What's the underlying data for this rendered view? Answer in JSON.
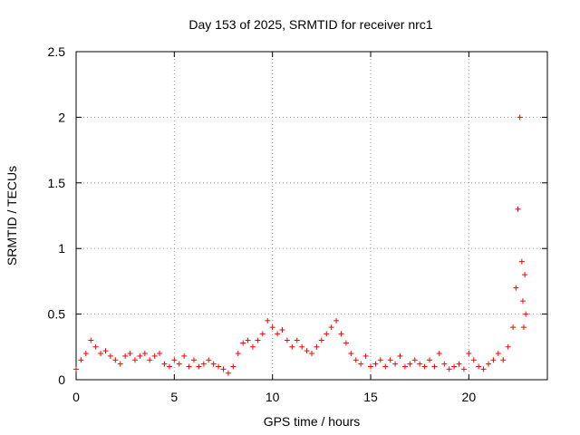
{
  "chart_data": {
    "type": "scatter",
    "title": "Day 153 of 2025, SRMTID for receiver nrc1",
    "xlabel": "GPS time / hours",
    "ylabel": "SRMTID / TECUs",
    "xlim": [
      0,
      24
    ],
    "ylim": [
      0,
      2.5
    ],
    "grid": true,
    "marker": "+",
    "xticks": [
      0,
      5,
      10,
      15,
      20
    ],
    "xtick_labels": [
      "0",
      "5",
      "10",
      "15",
      "20"
    ],
    "yticks": [
      0,
      0.5,
      1,
      1.5,
      2,
      2.5
    ],
    "ytick_labels": [
      "0",
      "0.5",
      "1",
      "1.5",
      "2",
      "2.5"
    ],
    "colors": {
      "marker": "#ff0000",
      "grid": "#a0a0a0",
      "axis": "#000000"
    },
    "series": [
      {
        "name": "nrc1",
        "x": [
          0.0,
          0.25,
          0.5,
          0.75,
          1.0,
          1.25,
          1.5,
          1.75,
          2.0,
          2.25,
          2.5,
          2.75,
          3.0,
          3.25,
          3.5,
          3.75,
          4.0,
          4.25,
          4.5,
          4.75,
          5.0,
          5.25,
          5.5,
          5.75,
          6.0,
          6.25,
          6.5,
          6.75,
          7.0,
          7.25,
          7.5,
          7.75,
          8.0,
          8.25,
          8.5,
          8.75,
          9.0,
          9.25,
          9.5,
          9.75,
          10.0,
          10.25,
          10.5,
          10.75,
          11.0,
          11.25,
          11.5,
          11.75,
          12.0,
          12.25,
          12.5,
          12.75,
          13.0,
          13.25,
          13.5,
          13.75,
          14.0,
          14.25,
          14.5,
          14.75,
          15.0,
          15.25,
          15.5,
          15.75,
          16.0,
          16.25,
          16.5,
          16.75,
          17.0,
          17.25,
          17.5,
          17.75,
          18.0,
          18.25,
          18.5,
          18.75,
          19.0,
          19.25,
          19.5,
          19.75,
          20.0,
          20.25,
          20.5,
          20.75,
          21.0,
          21.25,
          21.5,
          21.75,
          22.0,
          22.25,
          22.4,
          22.5,
          22.6,
          22.7,
          22.75,
          22.8,
          22.85,
          22.9
        ],
        "values": [
          0.08,
          0.15,
          0.2,
          0.3,
          0.25,
          0.2,
          0.22,
          0.18,
          0.15,
          0.12,
          0.18,
          0.2,
          0.15,
          0.18,
          0.2,
          0.15,
          0.18,
          0.2,
          0.12,
          0.1,
          0.15,
          0.12,
          0.18,
          0.1,
          0.15,
          0.1,
          0.12,
          0.15,
          0.12,
          0.1,
          0.08,
          0.05,
          0.1,
          0.2,
          0.28,
          0.3,
          0.25,
          0.3,
          0.35,
          0.45,
          0.4,
          0.35,
          0.38,
          0.3,
          0.25,
          0.3,
          0.25,
          0.22,
          0.2,
          0.25,
          0.3,
          0.35,
          0.4,
          0.45,
          0.35,
          0.28,
          0.2,
          0.15,
          0.12,
          0.18,
          0.1,
          0.12,
          0.15,
          0.1,
          0.15,
          0.12,
          0.18,
          0.1,
          0.12,
          0.15,
          0.12,
          0.1,
          0.15,
          0.1,
          0.2,
          0.12,
          0.08,
          0.1,
          0.12,
          0.08,
          0.2,
          0.15,
          0.1,
          0.08,
          0.12,
          0.15,
          0.2,
          0.15,
          0.25,
          0.4,
          0.7,
          1.3,
          2.0,
          0.9,
          0.6,
          0.4,
          0.8,
          0.5
        ]
      }
    ]
  }
}
